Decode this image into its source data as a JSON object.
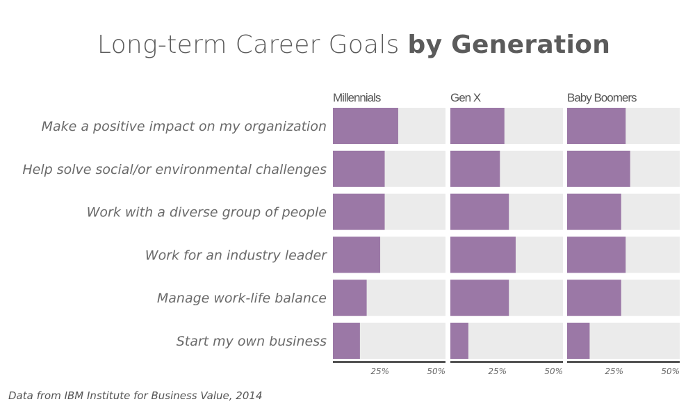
{
  "title": {
    "light": "Long-term Career Goals",
    "bold": "by Generation"
  },
  "source": "Data from IBM Institute for Business Value, 2014",
  "colors": {
    "bar": "#9b78a6",
    "track": "#ebebeb",
    "axis": "#555555"
  },
  "chart_data": {
    "type": "bar",
    "orientation": "horizontal",
    "categories": [
      "Make a positive impact on my organization",
      "Help solve social/or environmental challenges",
      "Work with a diverse group of people",
      "Work for an industry leader",
      "Manage work-life balance",
      "Start my own business"
    ],
    "panels": [
      {
        "name": "Millennials",
        "values": [
          29,
          23,
          23,
          21,
          15,
          12
        ]
      },
      {
        "name": "Gen X",
        "values": [
          24,
          22,
          26,
          29,
          26,
          8
        ]
      },
      {
        "name": "Baby Boomers",
        "values": [
          26,
          28,
          24,
          26,
          24,
          10
        ]
      }
    ],
    "xlim": [
      0,
      50
    ],
    "ticks": [
      {
        "value": 25,
        "label": "25%"
      },
      {
        "value": 50,
        "label": "50%"
      }
    ],
    "grid": false
  }
}
